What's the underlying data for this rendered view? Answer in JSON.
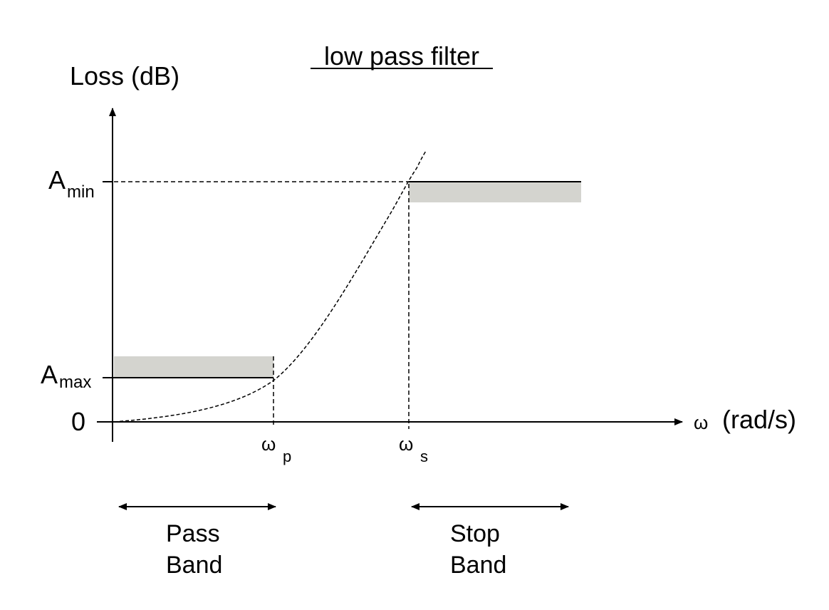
{
  "title": "low pass filter",
  "y_axis_label": "Loss (dB)",
  "x_axis_label": "(rad/s)",
  "x_axis_symbol": "ω",
  "y_ticks": {
    "amin": {
      "base": "A",
      "sub": "min"
    },
    "amax": {
      "base": "A",
      "sub": "max"
    },
    "zero": "0"
  },
  "x_ticks": {
    "wp": {
      "base": "ω",
      "sub": "p"
    },
    "ws": {
      "base": "ω",
      "sub": "s"
    }
  },
  "bands": {
    "pass": {
      "line1": "Pass",
      "line2": "Band"
    },
    "stop": {
      "line1": "Stop",
      "line2": "Band"
    }
  },
  "colors": {
    "line": "#000000",
    "shade": "#d4d4cf",
    "background": "#ffffff"
  }
}
